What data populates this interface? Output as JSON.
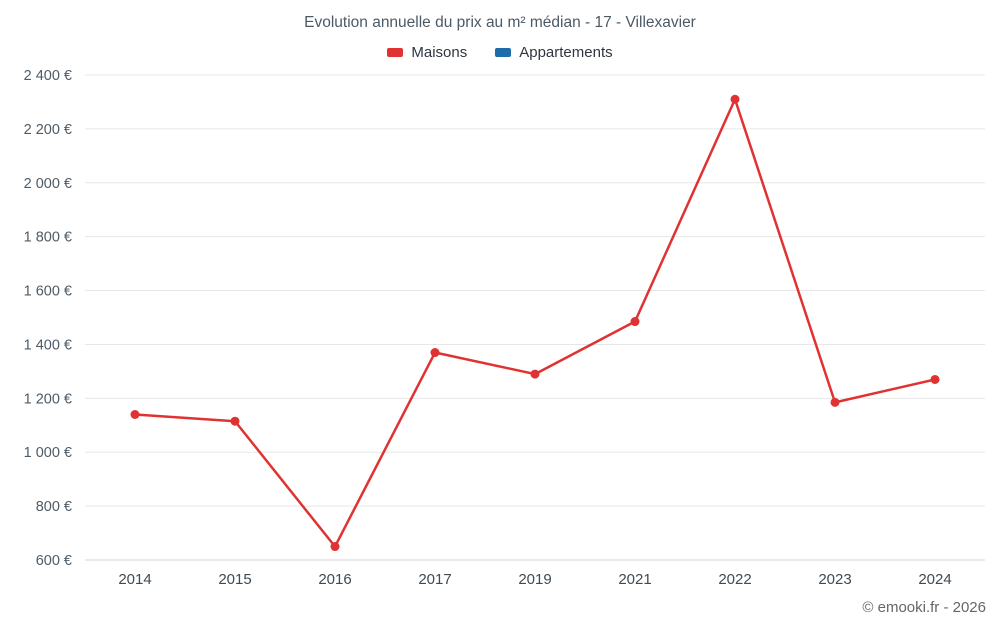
{
  "header": {
    "title": "Evolution annuelle du prix au m² médian - 17 - Villexavier"
  },
  "legend": {
    "items": [
      {
        "label": "Maisons",
        "color": "#e03232"
      },
      {
        "label": "Appartements",
        "color": "#1b6ca8"
      }
    ]
  },
  "footer": {
    "copyright": "© emooki.fr - 2026"
  },
  "chart_data": {
    "type": "line",
    "title": "Evolution annuelle du prix au m² médian - 17 - Villexavier",
    "categories": [
      "2014",
      "2015",
      "2016",
      "2017",
      "2019",
      "2021",
      "2022",
      "2023",
      "2024"
    ],
    "series": [
      {
        "name": "Maisons",
        "color": "#e03232",
        "values": [
          1140,
          1115,
          650,
          1370,
          1290,
          1485,
          2310,
          1185,
          1270
        ]
      },
      {
        "name": "Appartements",
        "color": "#1b6ca8",
        "values": []
      }
    ],
    "xlabel": "",
    "ylabel": "",
    "ylim": [
      600,
      2400
    ],
    "ytick_step": 200,
    "ytick_suffix": "€",
    "grid": "horizontal",
    "legend_position": "top"
  }
}
